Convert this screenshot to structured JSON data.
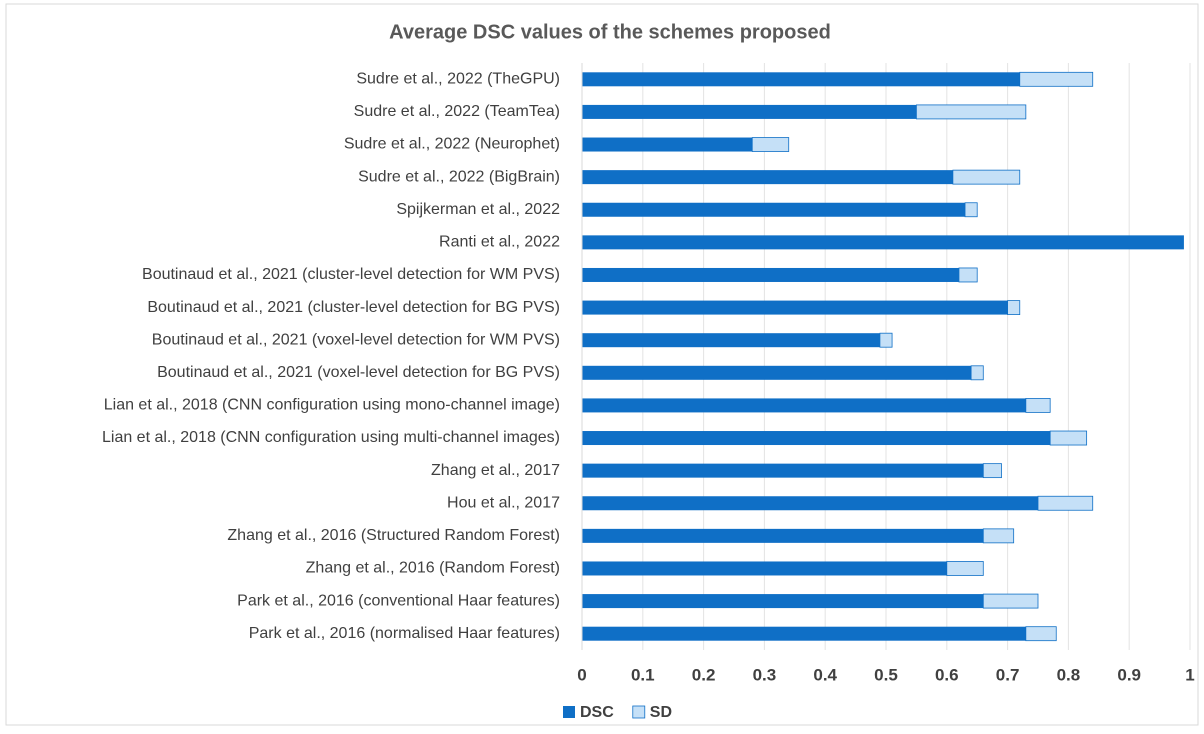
{
  "chart_data": {
    "type": "stacked-hbar",
    "title": "Average DSC values of the schemes proposed",
    "categories": [
      "Sudre et al., 2022 (TheGPU)",
      "Sudre et al., 2022 (TeamTea)",
      "Sudre et al., 2022 (Neurophet)",
      "Sudre et al., 2022 (BigBrain)",
      "Spijkerman et al., 2022",
      "Ranti et al., 2022",
      "Boutinaud et al., 2021 (cluster-level detection for WM PVS)",
      "Boutinaud et al., 2021 (cluster-level detection for BG PVS)",
      "Boutinaud et al., 2021 (voxel-level detection for WM PVS)",
      "Boutinaud et al., 2021 (voxel-level detection for BG PVS)",
      "Lian et al., 2018 (CNN configuration using mono-channel image)",
      "Lian et al., 2018 (CNN configuration using multi-channel images)",
      "Zhang et al., 2017",
      "Hou et al., 2017",
      "Zhang et al., 2016 (Structured Random Forest)",
      "Zhang et al., 2016 (Random Forest)",
      "Park et al., 2016 (conventional Haar features)",
      "Park et al., 2016 (normalised Haar features)"
    ],
    "series": [
      {
        "name": "DSC",
        "color": "#0f6fc6",
        "values": [
          0.72,
          0.55,
          0.28,
          0.61,
          0.63,
          0.99,
          0.62,
          0.7,
          0.49,
          0.64,
          0.73,
          0.77,
          0.66,
          0.75,
          0.66,
          0.6,
          0.66,
          0.73
        ]
      },
      {
        "name": "SD",
        "color": "#c5e0f7",
        "values": [
          0.12,
          0.18,
          0.06,
          0.11,
          0.02,
          0,
          0.03,
          0.02,
          0.02,
          0.02,
          0.04,
          0.06,
          0.03,
          0.09,
          0.05,
          0.06,
          0.09,
          0.05
        ]
      }
    ],
    "xlim": [
      0,
      1
    ],
    "xticks": [
      0,
      0.1,
      0.2,
      0.3,
      0.4,
      0.5,
      0.6,
      0.7,
      0.8,
      0.9,
      1
    ],
    "grid": true,
    "legend": "bottom"
  }
}
